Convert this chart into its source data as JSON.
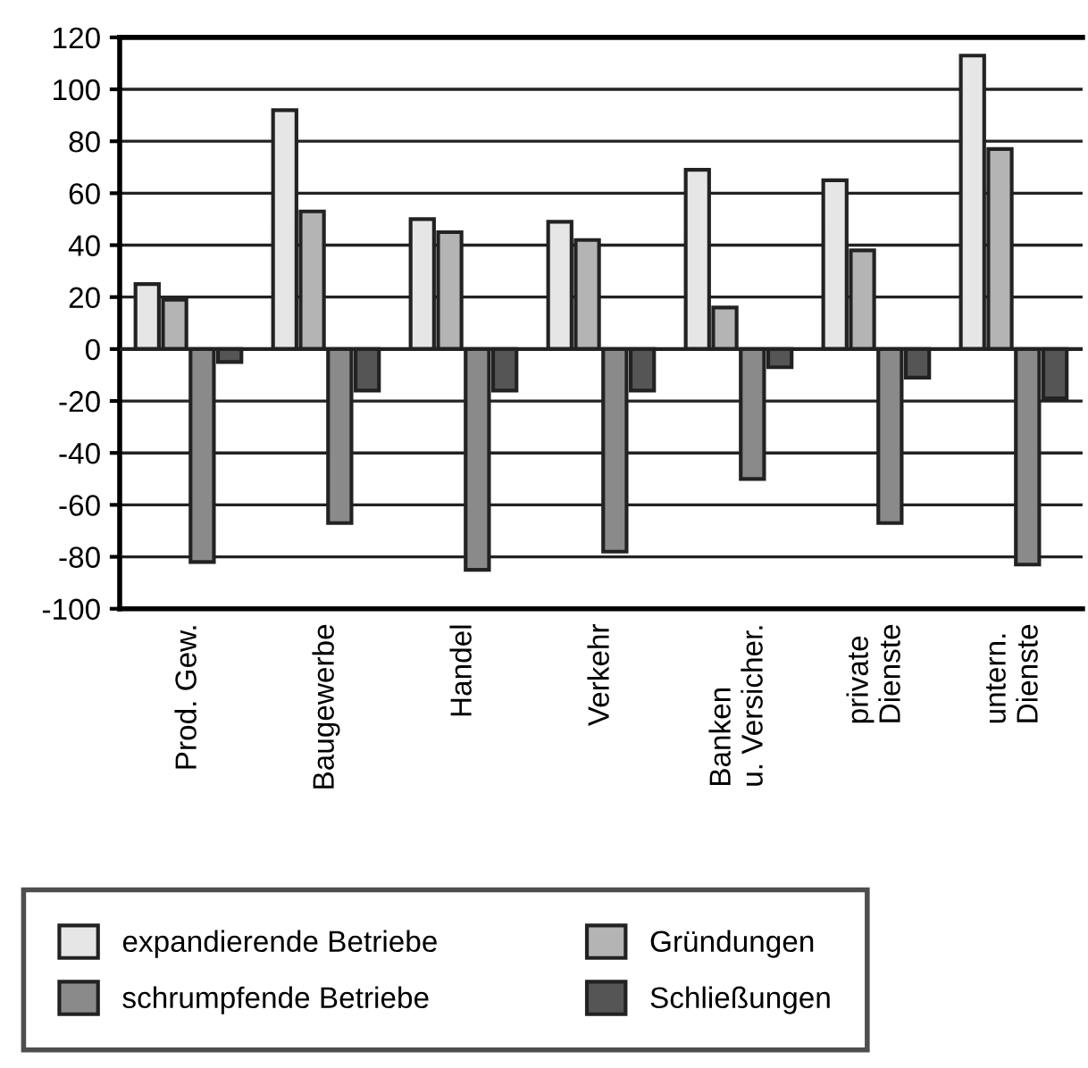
{
  "chart_data": {
    "type": "bar",
    "categories": [
      "Prod. Gew.",
      "Baugewerbe",
      "Handel",
      "Verkehr",
      "Banken\nu. Versicher.",
      "private\nDienste",
      "untern.\nDienste"
    ],
    "series": [
      {
        "name": "expandierende Betriebe",
        "color": "#e6e6e6",
        "values": [
          25,
          92,
          50,
          49,
          69,
          65,
          113
        ]
      },
      {
        "name": "Gründungen",
        "color": "#b4b4b4",
        "values": [
          19,
          53,
          45,
          42,
          16,
          38,
          77
        ]
      },
      {
        "name": "schrumpfende Betriebe",
        "color": "#8a8a8a",
        "values": [
          -82,
          -67,
          -85,
          -78,
          -50,
          -67,
          -83
        ]
      },
      {
        "name": "Schließungen",
        "color": "#555555",
        "values": [
          -5,
          -16,
          -16,
          -16,
          -7,
          -11,
          -19
        ]
      }
    ],
    "ylim": [
      -100,
      120
    ],
    "yticks": [
      -100,
      -80,
      -60,
      -40,
      -20,
      0,
      20,
      40,
      60,
      80,
      100,
      120
    ],
    "grid": "y",
    "legend": "bottom"
  }
}
